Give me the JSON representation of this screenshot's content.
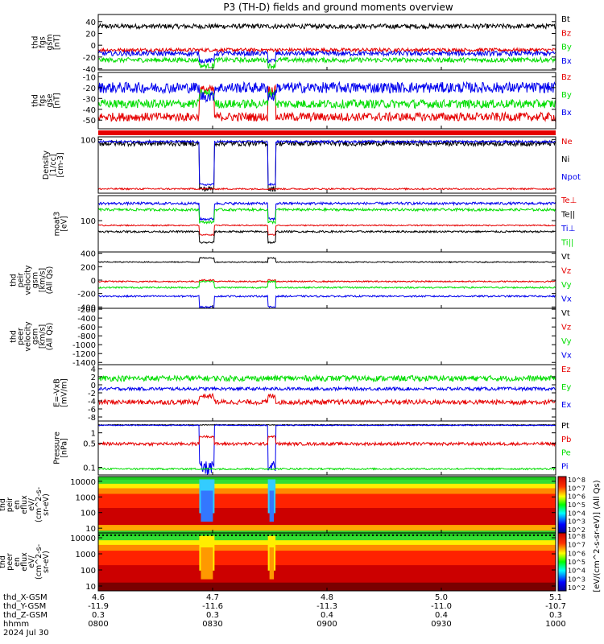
{
  "title": "P3 (TH-D) fields and ground moments overview",
  "colors": {
    "black": "#000000",
    "red": "#e60000",
    "green": "#00dd00",
    "blue": "#0000ee"
  },
  "chart_data": {
    "type": "line",
    "time_range": [
      "0800",
      "1000"
    ],
    "panels": [
      {
        "id": "fgs_gsm",
        "ylabel": [
          "thd",
          "fgs",
          "gsm",
          "[nT]"
        ],
        "yticks": [
          -40,
          -20,
          0,
          20,
          40
        ],
        "ylim": [
          -42,
          52
        ],
        "scale": "linear",
        "legend": [
          {
            "label": "Bt",
            "color": "black"
          },
          {
            "label": "Bz",
            "color": "red"
          },
          {
            "label": "By",
            "color": "green"
          },
          {
            "label": "Bx",
            "color": "blue"
          }
        ],
        "series": [
          {
            "name": "Bt",
            "color": "black",
            "base": 32,
            "noise": 4,
            "dip": 0
          },
          {
            "name": "Bz",
            "color": "red",
            "base": -8,
            "noise": 3,
            "dip": 0
          },
          {
            "name": "By",
            "color": "green",
            "base": -25,
            "noise": 4,
            "dip": -10
          },
          {
            "name": "Bx",
            "color": "blue",
            "base": -14,
            "noise": 4,
            "dip": -12
          }
        ]
      },
      {
        "id": "fgs_gse",
        "ylabel": [
          "thd",
          "fgs",
          "gse",
          "[nT]"
        ],
        "yticks": [
          -50,
          -40,
          -30,
          -20,
          -10
        ],
        "ylim": [
          -58,
          -6
        ],
        "scale": "linear",
        "legend": [
          {
            "label": "Bz",
            "color": "red"
          },
          {
            "label": "By",
            "color": "green"
          },
          {
            "label": "Bx",
            "color": "blue"
          }
        ],
        "series": [
          {
            "name": "Bz",
            "color": "red",
            "base": -47,
            "noise": 4,
            "dip": 25
          },
          {
            "name": "By",
            "color": "green",
            "base": -35,
            "noise": 4,
            "dip": 10
          },
          {
            "name": "Bx",
            "color": "blue",
            "base": -20,
            "noise": 5,
            "dip": -8
          }
        ]
      },
      {
        "id": "density",
        "ylabel": [
          "Density",
          "[1/cc]",
          "[cm-3]"
        ],
        "yticks": [
          100
        ],
        "ylim": [
          0,
          105
        ],
        "scale": "linear",
        "legend": [
          {
            "label": "Ne",
            "color": "red"
          },
          {
            "label": "Ni",
            "color": "black"
          },
          {
            "label": "Npot",
            "color": "blue"
          }
        ],
        "series": [
          {
            "name": "Ni",
            "color": "black",
            "base": 93,
            "noise": 5,
            "dip": -85
          },
          {
            "name": "Npot",
            "color": "blue",
            "base": 96,
            "noise": 2,
            "dip": -80
          },
          {
            "name": "Ne",
            "color": "red",
            "base": 8,
            "noise": 1.5,
            "dip": 0
          }
        ]
      },
      {
        "id": "temperature",
        "ylabel": [
          "moat3",
          "[eV]"
        ],
        "yticks": [
          100
        ],
        "ylim": [
          0,
          180
        ],
        "scale": "linear",
        "legend": [
          {
            "label": "Te⊥",
            "color": "red"
          },
          {
            "label": "Te||",
            "color": "black"
          },
          {
            "label": "Ti⊥",
            "color": "blue"
          },
          {
            "label": "Ti||",
            "color": "green"
          }
        ],
        "series": [
          {
            "name": "Ti⊥",
            "color": "blue",
            "base": 155,
            "noise": 4,
            "dip": -50
          },
          {
            "name": "Ti||",
            "color": "green",
            "base": 135,
            "noise": 4,
            "dip": -40
          },
          {
            "name": "Te⊥",
            "color": "red",
            "base": 85,
            "noise": 2,
            "dip": -30
          },
          {
            "name": "Te||",
            "color": "black",
            "base": 65,
            "noise": 3,
            "dip": -35
          }
        ]
      },
      {
        "id": "peir_velocity",
        "ylabel": [
          "thd",
          "peir",
          "velocity",
          "gsm",
          "[km/s]",
          "(All Qs)"
        ],
        "yticks": [
          -400,
          -200,
          0,
          200,
          400
        ],
        "ylim": [
          -420,
          420
        ],
        "scale": "linear",
        "legend": [
          {
            "label": "Vt",
            "color": "black"
          },
          {
            "label": "Vz",
            "color": "red"
          },
          {
            "label": "Vy",
            "color": "green"
          },
          {
            "label": "Vx",
            "color": "blue"
          }
        ],
        "series": [
          {
            "name": "Vt",
            "color": "black",
            "base": 270,
            "noise": 8,
            "dip": 60
          },
          {
            "name": "Vz",
            "color": "red",
            "base": -20,
            "noise": 10,
            "dip": 20
          },
          {
            "name": "Vy",
            "color": "green",
            "base": -110,
            "noise": 12,
            "dip": 90
          },
          {
            "name": "Vx",
            "color": "blue",
            "base": -240,
            "noise": 12,
            "dip": -160
          }
        ]
      },
      {
        "id": "peer_velocity",
        "ylabel": [
          "thd",
          "peer",
          "velocity",
          "gsm",
          "[km/s]",
          "(All Qs)"
        ],
        "yticks": [
          -1400,
          -1200,
          -1000,
          -800,
          -600,
          -400,
          -200
        ],
        "ylim": [
          -1450,
          -180
        ],
        "scale": "linear",
        "legend": [
          {
            "label": "Vt",
            "color": "black"
          },
          {
            "label": "Vz",
            "color": "red"
          },
          {
            "label": "Vy",
            "color": "green"
          },
          {
            "label": "Vx",
            "color": "blue"
          }
        ],
        "series": []
      },
      {
        "id": "efield",
        "ylabel": [
          "E=-VxB",
          "[mV/m]"
        ],
        "yticks": [
          -8,
          -6,
          -4,
          -2,
          0,
          2,
          4
        ],
        "ylim": [
          -9,
          5
        ],
        "scale": "linear",
        "legend": [
          {
            "label": "Ez",
            "color": "red"
          },
          {
            "label": "Ey",
            "color": "green"
          },
          {
            "label": "Ex",
            "color": "blue"
          }
        ],
        "series": [
          {
            "name": "Ey",
            "color": "green",
            "base": 1.6,
            "noise": 0.7,
            "dip": 0
          },
          {
            "name": "Ex",
            "color": "blue",
            "base": -1.0,
            "noise": 0.4,
            "dip": 0
          },
          {
            "name": "Ez",
            "color": "red",
            "base": -4.3,
            "noise": 0.6,
            "dip": 1.5
          }
        ]
      },
      {
        "id": "pressure",
        "ylabel": [
          "Pressure",
          "[nPa]"
        ],
        "yticks": [
          0.1,
          0.5,
          1.0
        ],
        "ylim": [
          0.06,
          2.2
        ],
        "scale": "log",
        "legend": [
          {
            "label": "Pt",
            "color": "black"
          },
          {
            "label": "Pb",
            "color": "red"
          },
          {
            "label": "Pe",
            "color": "green"
          },
          {
            "label": "Pi",
            "color": "blue"
          }
        ],
        "series": [
          {
            "name": "Pt",
            "color": "black",
            "base": 1.7,
            "noise": 0.05,
            "dip": 0
          },
          {
            "name": "Pi",
            "color": "blue",
            "base": 1.65,
            "noise": 0.05,
            "dip": -1.55
          },
          {
            "name": "Pb",
            "color": "red",
            "base": 0.48,
            "noise": 0.05,
            "dip": 0.3
          },
          {
            "name": "Pe",
            "color": "green",
            "base": 0.09,
            "noise": 0.005,
            "dip": 0
          }
        ]
      },
      {
        "id": "peir_eflux",
        "type": "heatmap",
        "ylabel": [
          "thd",
          "peir",
          "en",
          "eflux",
          "eV/",
          "(cm^2-s-",
          "sr-eV)"
        ],
        "yticks": [
          10,
          100,
          1000,
          10000
        ],
        "ylim": [
          5,
          20000
        ],
        "scale": "log",
        "colorbar": {
          "ticks": [
            "10^2",
            "10^3",
            "10^4",
            "10^5",
            "10^6",
            "10^7",
            "10^8"
          ]
        }
      },
      {
        "id": "peer_eflux",
        "type": "heatmap",
        "ylabel": [
          "thd",
          "peer",
          "en",
          "eflux",
          "eV/",
          "(cm^2-s-",
          "sr-eV)"
        ],
        "yticks": [
          10,
          100,
          1000,
          10000
        ],
        "ylim": [
          5,
          20000
        ],
        "scale": "log",
        "colorbar": {
          "ticks": [
            "10^2",
            "10^3",
            "10^4",
            "10^5",
            "10^6",
            "10^7",
            "10^8"
          ]
        }
      }
    ],
    "colorbar_label": "[eV/(cm^2-s-sr-eV)] (All Qs)",
    "x_axis": {
      "row_labels": [
        "thd_X-GSM",
        "thd_Y-GSM",
        "thd_Z-GSM",
        "hhmm",
        "2024 Jul 30"
      ],
      "ticks": [
        {
          "t": 0,
          "rows": [
            "4.6",
            "-11.9",
            "0.3",
            "0800"
          ]
        },
        {
          "t": 30,
          "rows": [
            "4.7",
            "-11.6",
            "0.3",
            "0830"
          ]
        },
        {
          "t": 60,
          "rows": [
            "4.8",
            "-11.3",
            "0.4",
            "0900"
          ]
        },
        {
          "t": 90,
          "rows": [
            "5.0",
            "-11.0",
            "0.4",
            "0930"
          ]
        },
        {
          "t": 120,
          "rows": [
            "5.1",
            "-10.7",
            "0.3",
            "1000"
          ]
        }
      ]
    },
    "events": [
      {
        "start": 26.5,
        "end": 30.5
      },
      {
        "start": 44.5,
        "end": 46.5
      }
    ]
  }
}
